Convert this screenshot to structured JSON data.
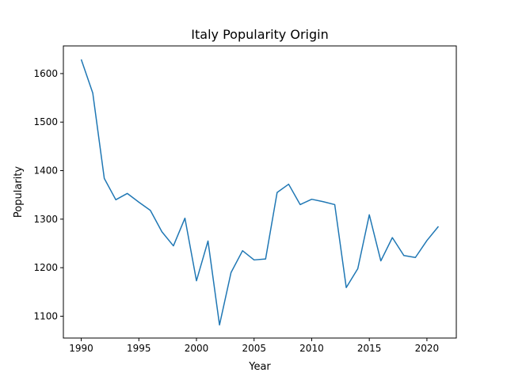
{
  "chart_data": {
    "type": "line",
    "title": "Italy Popularity Origin",
    "xlabel": "Year",
    "ylabel": "Popularity",
    "xlim": [
      1988.45,
      2022.55
    ],
    "ylim": [
      1055,
      1657
    ],
    "xticks": [
      1990,
      1995,
      2000,
      2005,
      2010,
      2015,
      2020
    ],
    "yticks": [
      1100,
      1200,
      1300,
      1400,
      1500,
      1600
    ],
    "grid": false,
    "line_color": "#1f77b4",
    "series": [
      {
        "x": [
          1990,
          1991,
          1992,
          1993,
          1994,
          1995,
          1996,
          1997,
          1998,
          1999,
          2000,
          2001,
          2002,
          2003,
          2004,
          2005,
          2006,
          2007,
          2008,
          2009,
          2010,
          2011,
          2012,
          2013,
          2014,
          2015,
          2016,
          2017,
          2018,
          2019,
          2020,
          2021
        ],
        "values": [
          1629,
          1560,
          1384,
          1340,
          1353,
          1335,
          1318,
          1274,
          1245,
          1302,
          1173,
          1255,
          1082,
          1190,
          1235,
          1216,
          1218,
          1355,
          1372,
          1330,
          1341,
          1336,
          1330,
          1159,
          1198,
          1309,
          1214,
          1262,
          1225,
          1221,
          1256,
          1285
        ]
      }
    ]
  }
}
